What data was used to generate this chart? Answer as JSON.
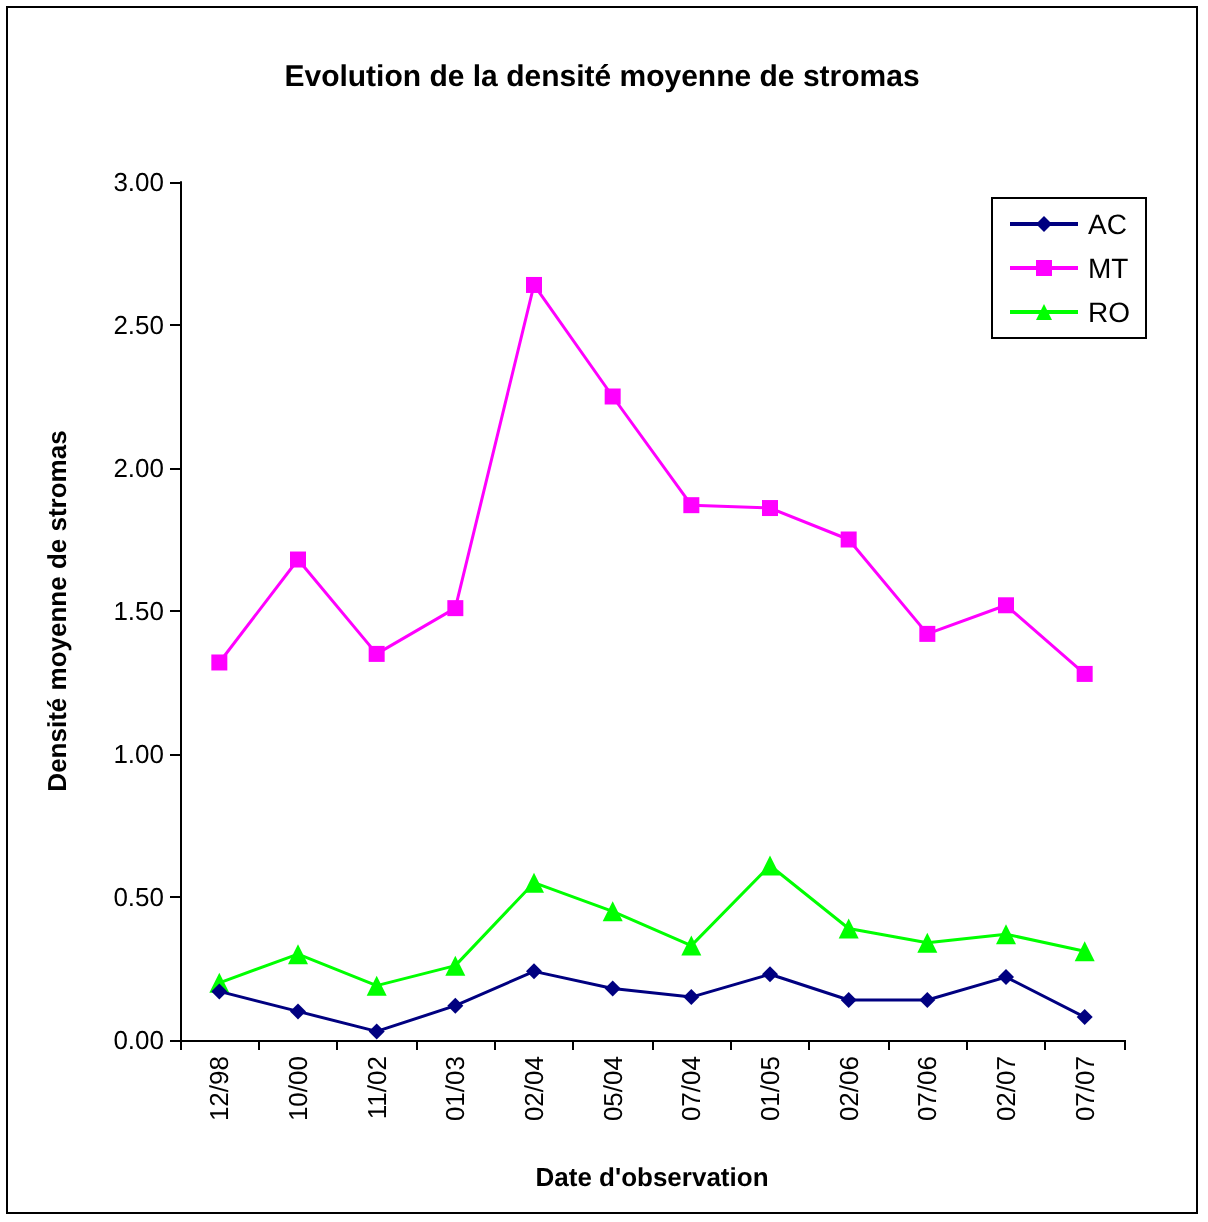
{
  "chart_data": {
    "type": "line",
    "title": "Evolution de la densité moyenne de stromas",
    "xlabel": "Date d'observation",
    "ylabel": "Densité moyenne de stromas",
    "categories": [
      "12/98",
      "10/00",
      "11/02",
      "01/03",
      "02/04",
      "05/04",
      "07/04",
      "01/05",
      "02/06",
      "07/06",
      "02/07",
      "07/07"
    ],
    "series": [
      {
        "name": "AC",
        "color": "#000080",
        "marker": "diamond",
        "values": [
          0.17,
          0.1,
          0.03,
          0.12,
          0.24,
          0.18,
          0.15,
          0.23,
          0.14,
          0.14,
          0.22,
          0.08
        ]
      },
      {
        "name": "MT",
        "color": "#ff00ff",
        "marker": "square",
        "values": [
          1.32,
          1.68,
          1.35,
          1.51,
          2.64,
          2.25,
          1.87,
          1.86,
          1.75,
          1.42,
          1.52,
          1.28
        ]
      },
      {
        "name": "RO",
        "color": "#00ff00",
        "marker": "triangle",
        "values": [
          0.2,
          0.3,
          0.19,
          0.26,
          0.55,
          0.45,
          0.33,
          0.61,
          0.39,
          0.34,
          0.37,
          0.31
        ]
      }
    ],
    "ylim": [
      0,
      3
    ],
    "yticks": [
      {
        "value": 0,
        "label": "0.00"
      },
      {
        "value": 0.5,
        "label": "0.50"
      },
      {
        "value": 1,
        "label": "1.00"
      },
      {
        "value": 1.5,
        "label": "1.50"
      },
      {
        "value": 2,
        "label": "2.00"
      },
      {
        "value": 2.5,
        "label": "2.50"
      },
      {
        "value": 3,
        "label": "3.00"
      }
    ],
    "grid": false,
    "legend": "top right"
  }
}
